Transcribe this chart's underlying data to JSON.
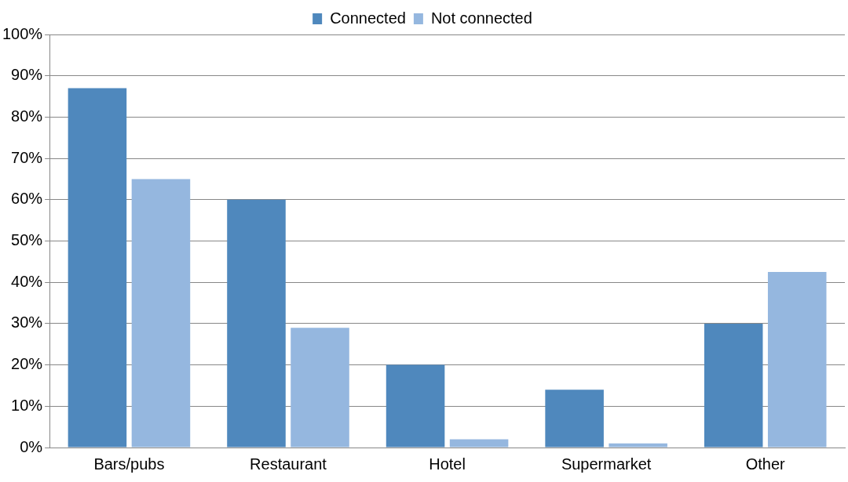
{
  "chart_data": {
    "type": "bar",
    "categories": [
      "Bars/pubs",
      "Restaurant",
      "Hotel",
      "Supermarket",
      "Other"
    ],
    "series": [
      {
        "name": "Connected",
        "color": "#4f88bd",
        "values": [
          87,
          60,
          20,
          14,
          30
        ]
      },
      {
        "name": "Not connected",
        "color": "#95b7df",
        "values": [
          65,
          29,
          2,
          1,
          42.5
        ]
      }
    ],
    "ylim": [
      0,
      100
    ],
    "yticks": [
      {
        "value": 0,
        "label": "0%"
      },
      {
        "value": 10,
        "label": "10%"
      },
      {
        "value": 20,
        "label": "20%"
      },
      {
        "value": 30,
        "label": "30%"
      },
      {
        "value": 40,
        "label": "40%"
      },
      {
        "value": 50,
        "label": "50%"
      },
      {
        "value": 60,
        "label": "60%"
      },
      {
        "value": 70,
        "label": "70%"
      },
      {
        "value": 80,
        "label": "80%"
      },
      {
        "value": 90,
        "label": "90%"
      },
      {
        "value": 100,
        "label": "100%"
      }
    ],
    "grid": "y",
    "legend": "top"
  }
}
